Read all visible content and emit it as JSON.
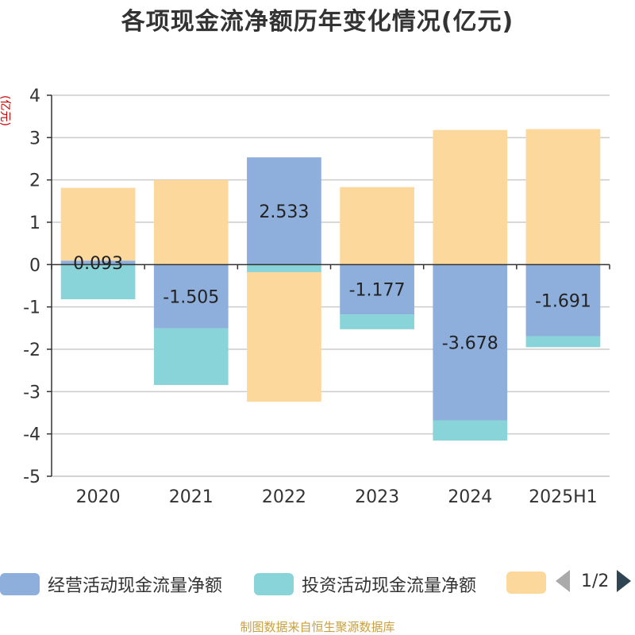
{
  "title": "各项现金流净额历年变化情况(亿元)",
  "footer": "制图数据来自恒生聚源数据库",
  "legend": {
    "items": [
      {
        "label": "经营活动现金流量净额",
        "color": "#8eaedb"
      },
      {
        "label": "投资活动现金流量净额",
        "color": "#88d4d8"
      },
      {
        "label": "",
        "color": "#fdd89c"
      }
    ],
    "page": "1/2"
  },
  "chart_data": {
    "type": "bar",
    "stacked": true,
    "unit_label": "(亿元)",
    "categories": [
      "2020",
      "2021",
      "2022",
      "2023",
      "2024",
      "2025H1"
    ],
    "ylim": [
      -5,
      4
    ],
    "yticks": [
      4,
      3,
      2,
      1,
      0,
      -1,
      -2,
      -3,
      -4,
      -5
    ],
    "grid": true,
    "legend_position": "bottom",
    "series": [
      {
        "name": "经营活动现金流量净额",
        "color": "#8eaedb",
        "values": [
          0.093,
          -1.505,
          2.533,
          -1.177,
          -3.678,
          -1.691
        ],
        "labels": [
          "0.093",
          "-1.505",
          "2.533",
          "-1.177",
          "-3.678",
          "-1.691"
        ]
      },
      {
        "name": "投资活动现金流量净额",
        "color": "#88d4d8",
        "values": [
          -0.82,
          -1.34,
          -0.18,
          -0.35,
          -0.48,
          -0.26
        ]
      },
      {
        "color": "#fdd89c",
        "values": [
          1.72,
          2.0,
          -3.06,
          1.83,
          3.18,
          3.2
        ]
      }
    ]
  }
}
